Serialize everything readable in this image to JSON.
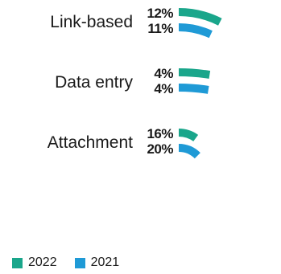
{
  "chart_data": {
    "type": "bar",
    "categories": [
      "Link-based",
      "Data entry",
      "Attachment"
    ],
    "series": [
      {
        "name": "2022",
        "values": [
          12,
          4,
          16
        ],
        "color": "#1aa68b"
      },
      {
        "name": "2021",
        "values": [
          11,
          4,
          20
        ],
        "color": "#1f9ad6"
      }
    ],
    "value_labels": {
      "2022": [
        "12%",
        "4%",
        "16%"
      ],
      "2021": [
        "11%",
        "4%",
        "20%"
      ]
    }
  }
}
